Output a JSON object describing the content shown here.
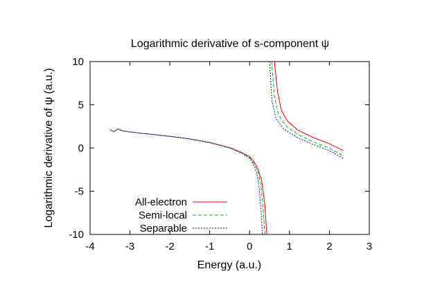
{
  "chart_data": {
    "type": "line",
    "title": "Logarithmic derivative of s-component ψ",
    "xlabel": "Energy (a.u.)",
    "ylabel": "Logarithmic derivative of ψ (a.u.)",
    "xlim": [
      -4,
      3
    ],
    "ylim": [
      -10,
      10
    ],
    "xticks": [
      -4,
      -3,
      -2,
      -1,
      0,
      1,
      2,
      3
    ],
    "yticks": [
      -10,
      -5,
      0,
      5,
      10
    ],
    "grid": false,
    "legend_position": "bottom-left",
    "series": [
      {
        "name": "All-electron",
        "color": "#ff0000",
        "dash": "solid",
        "segments": [
          [
            [
              -3.5,
              2.1
            ],
            [
              -3.4,
              1.9
            ],
            [
              -3.3,
              2.2
            ],
            [
              -3.2,
              2.0
            ],
            [
              -3.0,
              1.85
            ],
            [
              -2.5,
              1.6
            ],
            [
              -2.0,
              1.35
            ],
            [
              -1.5,
              1.05
            ],
            [
              -1.0,
              0.65
            ],
            [
              -0.5,
              0.05
            ],
            [
              -0.2,
              -0.5
            ],
            [
              0.0,
              -1.0
            ],
            [
              0.1,
              -1.5
            ],
            [
              0.2,
              -2.3
            ],
            [
              0.3,
              -3.8
            ],
            [
              0.38,
              -6.5
            ],
            [
              0.43,
              -10.0
            ]
          ],
          [
            [
              0.62,
              10.0
            ],
            [
              0.7,
              6.5
            ],
            [
              0.8,
              4.3
            ],
            [
              0.95,
              3.1
            ],
            [
              1.2,
              2.1
            ],
            [
              1.6,
              1.2
            ],
            [
              2.0,
              0.5
            ],
            [
              2.35,
              -0.3
            ]
          ]
        ]
      },
      {
        "name": "Semi-local",
        "color": "#00bb00",
        "dash": "dashed",
        "segments": [
          [
            [
              -3.5,
              2.1
            ],
            [
              -3.4,
              1.9
            ],
            [
              -3.3,
              2.2
            ],
            [
              -3.2,
              2.0
            ],
            [
              -3.0,
              1.85
            ],
            [
              -2.5,
              1.6
            ],
            [
              -2.0,
              1.35
            ],
            [
              -1.5,
              1.05
            ],
            [
              -1.0,
              0.65
            ],
            [
              -0.5,
              0.02
            ],
            [
              -0.2,
              -0.55
            ],
            [
              0.0,
              -1.1
            ],
            [
              0.1,
              -1.7
            ],
            [
              0.2,
              -2.6
            ],
            [
              0.28,
              -4.2
            ],
            [
              0.34,
              -7.0
            ],
            [
              0.38,
              -10.0
            ]
          ],
          [
            [
              0.55,
              10.0
            ],
            [
              0.62,
              6.0
            ],
            [
              0.72,
              3.9
            ],
            [
              0.9,
              2.6
            ],
            [
              1.2,
              1.6
            ],
            [
              1.6,
              0.7
            ],
            [
              2.0,
              0.0
            ],
            [
              2.35,
              -0.9
            ]
          ]
        ]
      },
      {
        "name": "Separable",
        "color": "#0000ff",
        "dash": "dotted",
        "segments": [
          [
            [
              -3.5,
              2.1
            ],
            [
              -3.4,
              1.9
            ],
            [
              -3.3,
              2.2
            ],
            [
              -3.2,
              2.0
            ],
            [
              -3.0,
              1.85
            ],
            [
              -2.5,
              1.6
            ],
            [
              -2.0,
              1.35
            ],
            [
              -1.5,
              1.05
            ],
            [
              -1.0,
              0.6
            ],
            [
              -0.5,
              0.0
            ],
            [
              -0.2,
              -0.6
            ],
            [
              0.0,
              -1.2
            ],
            [
              0.1,
              -1.9
            ],
            [
              0.18,
              -2.9
            ],
            [
              0.24,
              -4.6
            ],
            [
              0.29,
              -7.5
            ],
            [
              0.32,
              -10.0
            ]
          ],
          [
            [
              0.5,
              10.0
            ],
            [
              0.56,
              5.5
            ],
            [
              0.66,
              3.4
            ],
            [
              0.85,
              2.2
            ],
            [
              1.2,
              1.2
            ],
            [
              1.6,
              0.4
            ],
            [
              2.0,
              -0.3
            ],
            [
              2.35,
              -1.2
            ]
          ]
        ]
      }
    ]
  }
}
